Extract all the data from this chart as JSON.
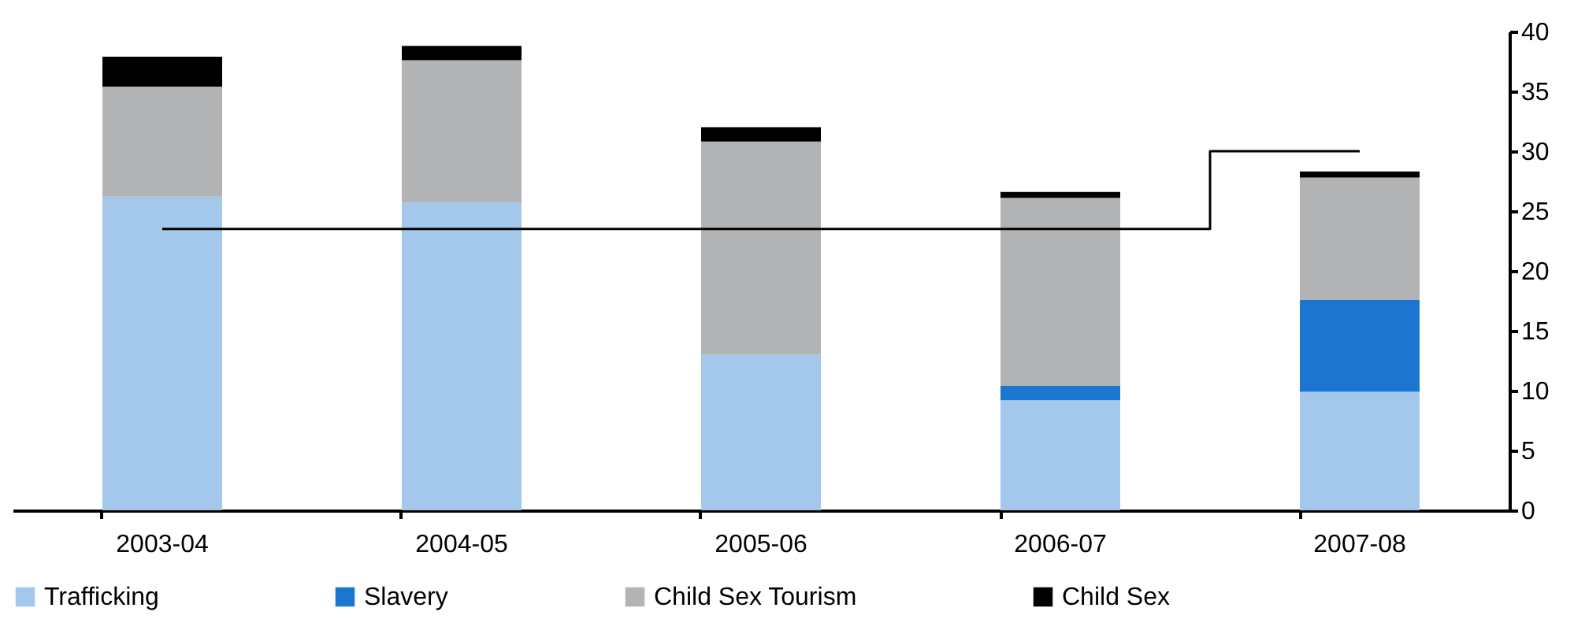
{
  "chart_data": {
    "type": "bar",
    "stacked": true,
    "categories": [
      "2003-04",
      "2004-05",
      "2005-06",
      "2006-07",
      "2007-08"
    ],
    "series": [
      {
        "name": "Trafficking",
        "color": "#a4c8ec",
        "values": [
          26.2,
          25.7,
          13.0,
          9.2,
          9.9
        ]
      },
      {
        "name": "Slavery",
        "color": "#1c75cf",
        "values": [
          0,
          0,
          0,
          1.2,
          7.7
        ]
      },
      {
        "name": "Child Sex Tourism",
        "color": "#b2b3b5",
        "values": [
          9.2,
          11.9,
          17.8,
          15.7,
          10.2
        ]
      },
      {
        "name": "Child Sex",
        "color": "#000000",
        "values": [
          2.5,
          1.2,
          1.2,
          0.5,
          0.5
        ]
      },
      {
        "type": "step",
        "color": "#000000",
        "values": [
          23.5,
          23.5,
          23.5,
          23.5,
          30
        ]
      }
    ],
    "ylim": [
      0,
      40
    ],
    "yticks": [
      0,
      5,
      10,
      15,
      20,
      25,
      30,
      35,
      40
    ],
    "grid": false,
    "legend": "bottom"
  }
}
